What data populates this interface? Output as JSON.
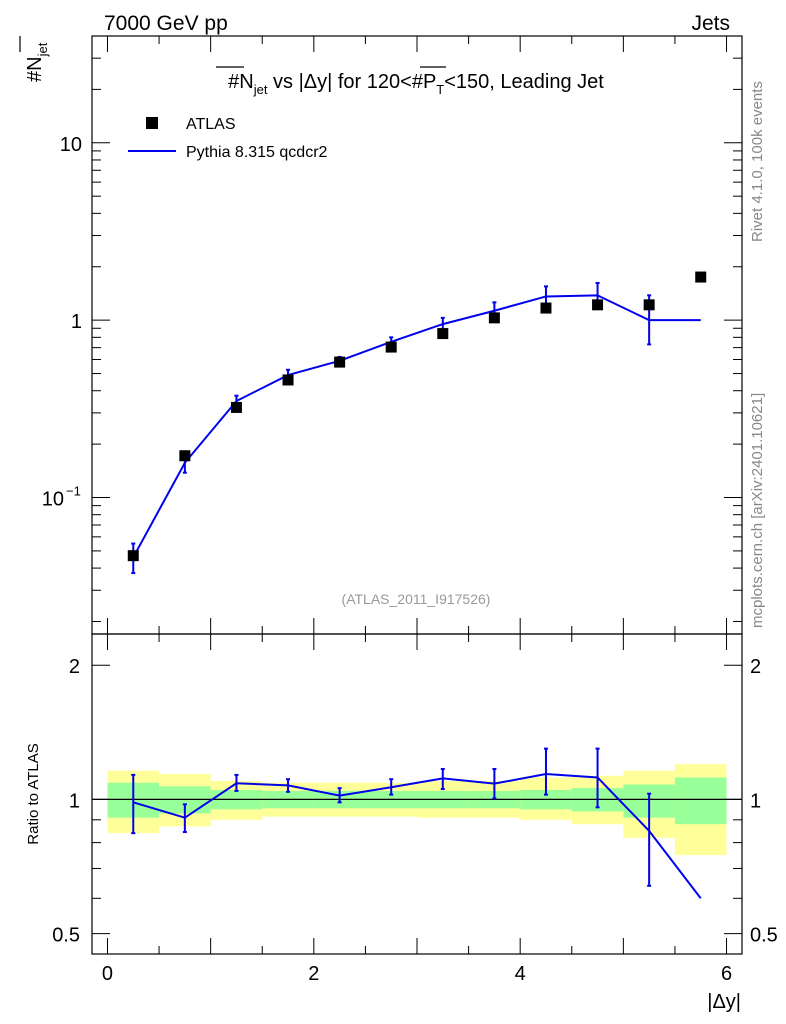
{
  "header": {
    "left": "7000 GeV pp",
    "right": "Jets"
  },
  "side_text": {
    "rivet": "Rivet 4.1.0,  100k events",
    "url": "mcplots.cern.ch [arXiv:2401.10621]"
  },
  "colors": {
    "data": "#000000",
    "mc": "#0000ee",
    "band_inner": "#99ff99",
    "band_outer": "#ffff99"
  },
  "chart_data": [
    {
      "type": "scatter",
      "panel": "main",
      "title": "#N̄jet vs |Δy| for 120<#P̄T<150, Leading Jet",
      "title_parts": {
        "a": "#N",
        "a_sub": "jet",
        "b": " vs |Δy| for 120<#",
        "c": "P",
        "c_sub": "T",
        "d": "<150, Leading Jet"
      },
      "ylabel": "#N̄jet",
      "ylabel_parts": {
        "main": "#N",
        "sub": "jet"
      },
      "yscale": "log",
      "ylim": [
        0.017,
        40
      ],
      "xlim": [
        -0.15,
        6.15
      ],
      "yticks": [
        {
          "value": 10,
          "label": "10"
        },
        {
          "value": 1,
          "label": "1"
        },
        {
          "value": 0.1,
          "label": "10",
          "exp": "−1"
        }
      ],
      "watermark": "(ATLAS_2011_I917526)",
      "legend": {
        "position": "top-left",
        "entries": [
          {
            "label": "ATLAS",
            "style": "marker"
          },
          {
            "label": "Pythia 8.315 qcdcr2",
            "style": "line"
          }
        ]
      },
      "series": [
        {
          "name": "ATLAS",
          "style": "marker",
          "x": [
            0.25,
            0.75,
            1.25,
            1.75,
            2.25,
            2.75,
            3.25,
            3.75,
            4.25,
            4.75,
            5.25,
            5.75
          ],
          "y": [
            0.047,
            0.172,
            0.322,
            0.46,
            0.58,
            0.705,
            0.84,
            1.03,
            1.17,
            1.22,
            1.22,
            1.75
          ]
        },
        {
          "name": "Pythia 8.315 qcdcr2",
          "style": "line",
          "x": [
            0.25,
            0.75,
            1.25,
            1.75,
            2.25,
            2.75,
            3.25,
            3.75,
            4.25,
            4.75,
            5.25,
            5.75
          ],
          "y": [
            0.046,
            0.157,
            0.35,
            0.49,
            0.59,
            0.755,
            0.95,
            1.13,
            1.36,
            1.38,
            1.0,
            1.0
          ],
          "err_lo": [
            0.0375,
            0.138,
            0.325,
            0.465,
            0.565,
            0.715,
            0.88,
            1.03,
            1.19,
            1.18,
            0.73,
            null
          ],
          "err_hi": [
            0.055,
            0.172,
            0.375,
            0.525,
            0.62,
            0.8,
            1.03,
            1.26,
            1.55,
            1.62,
            1.38,
            null
          ]
        }
      ]
    },
    {
      "type": "line",
      "panel": "ratio",
      "ylabel": "Ratio to ATLAS",
      "xlabel": "|Δy|",
      "yscale": "log",
      "ylim": [
        0.45,
        2.35
      ],
      "xlim": [
        -0.15,
        6.15
      ],
      "yticks": [
        {
          "value": 2,
          "label": "2"
        },
        {
          "value": 1,
          "label": "1"
        },
        {
          "value": 0.5,
          "label": "0.5"
        }
      ],
      "xticks": [
        {
          "value": 0,
          "label": "0"
        },
        {
          "value": 2,
          "label": "2"
        },
        {
          "value": 4,
          "label": "4"
        },
        {
          "value": 6,
          "label": "6"
        }
      ],
      "bands": {
        "bin_edges": [
          0,
          0.5,
          1,
          1.5,
          2,
          2.5,
          3,
          3.5,
          4,
          4.5,
          5,
          5.5,
          6
        ],
        "inner_lo": [
          0.91,
          0.93,
          0.95,
          0.955,
          0.955,
          0.955,
          0.955,
          0.955,
          0.95,
          0.94,
          0.91,
          0.88
        ],
        "inner_hi": [
          1.09,
          1.07,
          1.05,
          1.045,
          1.045,
          1.045,
          1.045,
          1.045,
          1.05,
          1.06,
          1.08,
          1.12
        ],
        "outer_lo": [
          0.84,
          0.87,
          0.9,
          0.915,
          0.915,
          0.915,
          0.91,
          0.91,
          0.9,
          0.88,
          0.82,
          0.75
        ],
        "outer_hi": [
          1.16,
          1.14,
          1.1,
          1.09,
          1.09,
          1.09,
          1.1,
          1.1,
          1.12,
          1.13,
          1.16,
          1.2
        ]
      },
      "series": [
        {
          "name": "Pythia 8.315 qcdcr2 / ATLAS",
          "x": [
            0.25,
            0.75,
            1.25,
            1.75,
            2.25,
            2.75,
            3.25,
            3.75,
            4.25,
            4.75,
            5.25,
            5.75
          ],
          "y": [
            0.985,
            0.91,
            1.087,
            1.075,
            1.02,
            1.065,
            1.115,
            1.085,
            1.14,
            1.12,
            0.85,
            0.6
          ],
          "err_lo": [
            0.84,
            0.845,
            1.045,
            1.04,
            0.985,
            1.025,
            1.055,
            1.005,
            1.025,
            0.96,
            0.64,
            null
          ],
          "err_hi": [
            1.135,
            0.975,
            1.135,
            1.11,
            1.06,
            1.11,
            1.17,
            1.17,
            1.3,
            1.3,
            1.03,
            null
          ]
        }
      ]
    }
  ]
}
